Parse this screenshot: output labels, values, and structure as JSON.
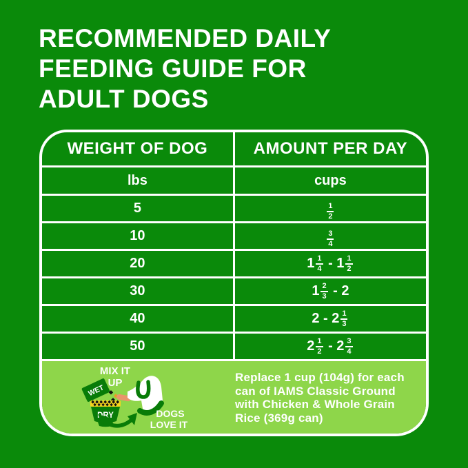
{
  "title": {
    "lines": [
      "RECOMMENDED DAILY",
      "FEEDING GUIDE FOR",
      "ADULT DOGS"
    ]
  },
  "table": {
    "headers": [
      "WEIGHT OF DOG",
      "AMOUNT PER DAY"
    ],
    "units": [
      "lbs",
      "cups"
    ],
    "rows": [
      {
        "weight": "5",
        "amount": [
          {
            "n": "1",
            "d": "2"
          }
        ]
      },
      {
        "weight": "10",
        "amount": [
          {
            "n": "3",
            "d": "4"
          }
        ]
      },
      {
        "weight": "20",
        "amount": [
          {
            "t": "1"
          },
          {
            "n": "1",
            "d": "4"
          },
          {
            "t": " - 1"
          },
          {
            "n": "1",
            "d": "2"
          }
        ]
      },
      {
        "weight": "30",
        "amount": [
          {
            "t": "1"
          },
          {
            "n": "2",
            "d": "3"
          },
          {
            "t": " - 2"
          }
        ]
      },
      {
        "weight": "40",
        "amount": [
          {
            "t": "2 - 2"
          },
          {
            "n": "1",
            "d": "3"
          }
        ]
      },
      {
        "weight": "50",
        "amount": [
          {
            "t": "2"
          },
          {
            "n": "1",
            "d": "2"
          },
          {
            "t": " - 2"
          },
          {
            "n": "3",
            "d": "4"
          }
        ]
      }
    ]
  },
  "footer": {
    "mix_lines": [
      "MIX IT",
      "UP"
    ],
    "wet_label": "WET",
    "dry_label": "DRY",
    "dogs_lines": [
      "DOGS",
      "LOVE IT"
    ],
    "note_lines": [
      "Replace 1 cup (104g) for each",
      "can of IAMS Classic Ground",
      "with Chicken & Whole Grain",
      "Rice (369g can)"
    ]
  },
  "colors": {
    "background_green": "#0a8a0a",
    "panel_lime": "#8ed64a",
    "border_white": "#ffffff",
    "illustration_dark_green": "#087c08",
    "bowl_band_yellow": "#f5d41e",
    "tongue_salmon": "#e8956a",
    "text_white": "#ffffff"
  }
}
